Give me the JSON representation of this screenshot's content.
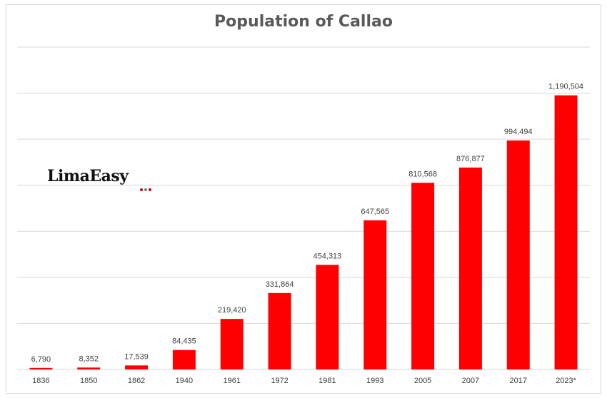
{
  "chart_data": {
    "type": "bar",
    "title": "Population of Callao",
    "categories": [
      "1836",
      "1850",
      "1862",
      "1940",
      "1961",
      "1972",
      "1981",
      "1993",
      "2005",
      "2007",
      "2017",
      "2023*"
    ],
    "values": [
      6790,
      8352,
      17539,
      84435,
      219420,
      331864,
      454313,
      647565,
      810568,
      876877,
      994494,
      1190504
    ],
    "data_labels": [
      "6,790",
      "8,352",
      "17,539",
      "84,435",
      "219,420",
      "331,864",
      "454,313",
      "647,565",
      "810,568",
      "876,877",
      "994,494",
      "1,190,504"
    ],
    "xlabel": "",
    "ylabel": "",
    "ylim": [
      0,
      1400000
    ],
    "grid": true,
    "legend": "none",
    "colors": {
      "bar": "#ff0000",
      "grid": "#d9d9d9",
      "title": "#595959",
      "label": "#404040"
    }
  },
  "logo": {
    "text": "LimaEasy",
    "dot_colors": [
      "#d40000",
      "#7a7a7a",
      "#d40000"
    ]
  }
}
